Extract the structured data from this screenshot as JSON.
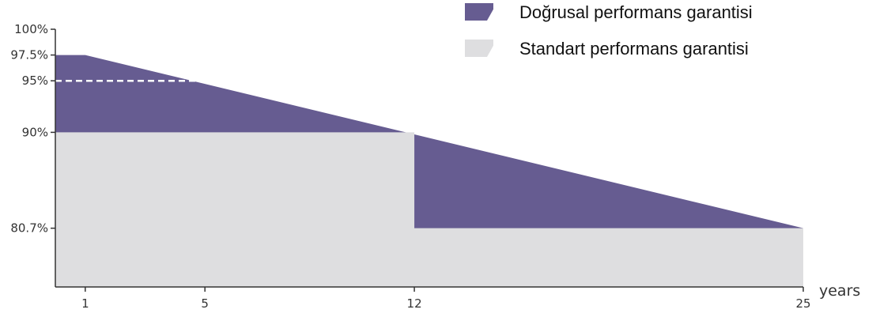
{
  "chart_data": {
    "type": "area",
    "x_unit_label": "years",
    "x_ticks": [
      "1",
      "5",
      "12",
      "25"
    ],
    "y_ticks": [
      "100%",
      "97.5%",
      "95%",
      "90%",
      "80.7%"
    ],
    "legend": [
      {
        "label": "Doğrusal performans garantisi",
        "color": "#665c91"
      },
      {
        "label": "Standart performans garantisi",
        "color": "#dedee0"
      }
    ],
    "series": [
      {
        "name": "Doğrusal performans garantisi",
        "points": [
          [
            0,
            97.5
          ],
          [
            1,
            97.5
          ],
          [
            25,
            80.7
          ]
        ]
      },
      {
        "name": "Standart performans garantisi",
        "points": [
          [
            0,
            90
          ],
          [
            12,
            90
          ],
          [
            12,
            80.7
          ],
          [
            25,
            80.7
          ]
        ]
      }
    ],
    "reference_line": {
      "x_from": 0,
      "x_to": 5,
      "y": 95,
      "style": "dashed"
    },
    "x_range": [
      0,
      25
    ],
    "y_range": [
      75,
      100
    ],
    "grid": false,
    "legend_position": "top-right",
    "colors": {
      "linear": "#665c91",
      "standard": "#dedee0",
      "axis": "#333333",
      "dash": "#ffffff"
    }
  }
}
